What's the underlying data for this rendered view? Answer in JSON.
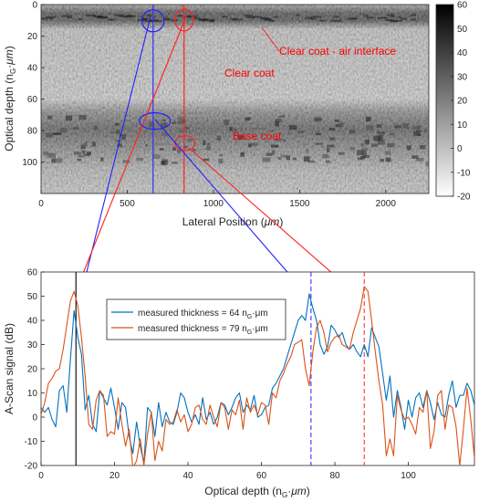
{
  "chart_data": [
    {
      "type": "heatmap",
      "xlabel": "Lateral Position (",
      "xlabel_unit": "μm",
      "xlabel_close": ")",
      "ylabel": "Optical depth (n",
      "ylabel_sub": "G",
      "ylabel_mid": "·",
      "ylabel_unit": "μm",
      "ylabel_close": ")",
      "xlim": [
        0,
        2250
      ],
      "ylim": [
        0,
        120
      ],
      "y_reversed": true,
      "x_ticks": [
        "0",
        "500",
        "1000",
        "1500",
        "2000"
      ],
      "y_ticks": [
        "0",
        "20",
        "40",
        "60",
        "80",
        "100"
      ],
      "colorbar": {
        "range": [
          -20,
          60
        ],
        "ticks": [
          "60",
          "50",
          "40",
          "30",
          "20",
          "10",
          "0",
          "-10",
          "-20"
        ],
        "colormap": "gray-reversed"
      },
      "features": {
        "interface_depth": 8,
        "base_coat_depth_range": [
          70,
          100
        ],
        "scan_lines_x": [
          650,
          830
        ]
      },
      "annotations": [
        {
          "text": "Clear coat - air interface",
          "color": "#ff0000"
        },
        {
          "text": "Clear coat",
          "color": "#ff0000"
        },
        {
          "text": "Base coat",
          "color": "#ff0000"
        }
      ]
    },
    {
      "type": "line",
      "xlabel": "Optical depth (n",
      "xlabel_sub": "G",
      "xlabel_mid": "·",
      "xlabel_unit": "μm",
      "xlabel_close": ")",
      "ylabel": "A-Scan signal (dB)",
      "xlim": [
        0,
        118
      ],
      "ylim": [
        -20,
        60
      ],
      "x_ticks": [
        "0",
        "20",
        "40",
        "60",
        "80",
        "100"
      ],
      "y_ticks": [
        "60",
        "50",
        "40",
        "30",
        "20",
        "10",
        "0",
        "-10",
        "-20"
      ],
      "legend_position": "upper-left",
      "vlines": [
        {
          "x": 9.5,
          "color": "#000000",
          "style": "solid"
        },
        {
          "x": 73.5,
          "color": "#3333ff",
          "style": "dashed"
        },
        {
          "x": 88,
          "color": "#ff3333",
          "style": "dashed"
        }
      ],
      "series": [
        {
          "name": "measured thickness = 64 n",
          "name_sub": "G",
          "name_unit": "·μm",
          "color": "#0072bd",
          "x": [
            0,
            1,
            2,
            3,
            4,
            5,
            6,
            7,
            8,
            9,
            10,
            11,
            12,
            13,
            14,
            15,
            16,
            17,
            18,
            19,
            20,
            21,
            22,
            23,
            24,
            25,
            26,
            27,
            28,
            29,
            30,
            31,
            32,
            33,
            34,
            35,
            36,
            37,
            38,
            39,
            40,
            41,
            42,
            43,
            44,
            45,
            46,
            47,
            48,
            49,
            50,
            51,
            52,
            53,
            54,
            55,
            56,
            57,
            58,
            59,
            60,
            61,
            62,
            63,
            64,
            65,
            66,
            67,
            68,
            69,
            70,
            71,
            72,
            73,
            74,
            75,
            76,
            77,
            78,
            79,
            80,
            81,
            82,
            83,
            84,
            85,
            86,
            87,
            88,
            89,
            90,
            91,
            92,
            93,
            94,
            95,
            96,
            97,
            98,
            99,
            100,
            101,
            102,
            103,
            104,
            105,
            106,
            107,
            108,
            109,
            110,
            111,
            112,
            113,
            114,
            115,
            116,
            117,
            118
          ],
          "values": [
            4,
            2,
            4,
            -1,
            -4,
            11,
            13,
            2,
            24,
            44,
            33,
            26,
            3,
            9,
            -3,
            -6,
            11,
            8,
            5,
            12,
            4,
            -5,
            6,
            4,
            -8,
            -15,
            -2,
            -12,
            -19,
            4,
            2,
            -8,
            6,
            -4,
            2,
            -2,
            -3,
            2,
            10,
            8,
            2,
            -2,
            1,
            -3,
            8,
            -1,
            2,
            -3,
            0,
            6,
            5,
            1,
            4,
            8,
            10,
            2,
            5,
            3,
            9,
            0,
            1,
            4,
            5,
            12,
            14,
            17,
            20,
            25,
            30,
            35,
            40,
            42,
            40,
            51,
            45,
            40,
            30,
            26,
            29,
            38,
            36,
            33,
            35,
            30,
            28,
            30,
            27,
            25,
            30,
            25,
            37,
            33,
            29,
            18,
            7,
            17,
            0,
            11,
            4,
            -5,
            7,
            0,
            8,
            10,
            4,
            11,
            6,
            -1,
            6,
            1,
            0,
            9,
            15,
            4,
            9,
            9,
            14,
            11,
            5
          ]
        },
        {
          "name": "measured thickness = 79 n",
          "name_sub": "G",
          "name_unit": "·μm",
          "color": "#d95319",
          "x": [
            0,
            1,
            2,
            3,
            4,
            5,
            6,
            7,
            8,
            9,
            10,
            11,
            12,
            13,
            14,
            15,
            16,
            17,
            18,
            19,
            20,
            21,
            22,
            23,
            24,
            25,
            26,
            27,
            28,
            29,
            30,
            31,
            32,
            33,
            34,
            35,
            36,
            37,
            38,
            39,
            40,
            41,
            42,
            43,
            44,
            45,
            46,
            47,
            48,
            49,
            50,
            51,
            52,
            53,
            54,
            55,
            56,
            57,
            58,
            59,
            60,
            61,
            62,
            63,
            64,
            65,
            66,
            67,
            68,
            69,
            70,
            71,
            72,
            73,
            74,
            75,
            76,
            77,
            78,
            79,
            80,
            81,
            82,
            83,
            84,
            85,
            86,
            87,
            88,
            89,
            90,
            91,
            92,
            93,
            94,
            95,
            96,
            97,
            98,
            99,
            100,
            101,
            102,
            103,
            104,
            105,
            106,
            107,
            108,
            109,
            110,
            111,
            112,
            113,
            114,
            115,
            116,
            117,
            118
          ],
          "values": [
            1,
            6,
            14,
            16,
            19,
            20,
            28,
            38,
            48,
            52,
            46,
            33,
            17,
            -3,
            -5,
            7,
            11,
            9,
            -8,
            -6,
            -7,
            8,
            -3,
            -12,
            -5,
            -21,
            -18,
            -9,
            -20,
            -7,
            2,
            -18,
            -10,
            -14,
            -1,
            -3,
            -2,
            3,
            -2,
            1,
            -6,
            -3,
            4,
            5,
            -1,
            -3,
            5,
            0,
            -4,
            6,
            4,
            -5,
            3,
            1,
            7,
            -5,
            8,
            2,
            5,
            1,
            6,
            5,
            -3,
            10,
            8,
            15,
            18,
            22,
            25,
            30,
            31,
            32,
            20,
            13,
            27,
            37,
            40,
            35,
            27,
            31,
            33,
            34,
            30,
            29,
            28,
            35,
            40,
            45,
            54,
            52,
            40,
            27,
            15,
            5,
            -16,
            -9,
            -16,
            9,
            3,
            -1,
            0,
            -3,
            -7,
            4,
            2,
            11,
            -13,
            -6,
            9,
            11,
            -5,
            5,
            4,
            -4,
            -20,
            -5,
            12,
            -1,
            -17
          ]
        }
      ]
    }
  ]
}
